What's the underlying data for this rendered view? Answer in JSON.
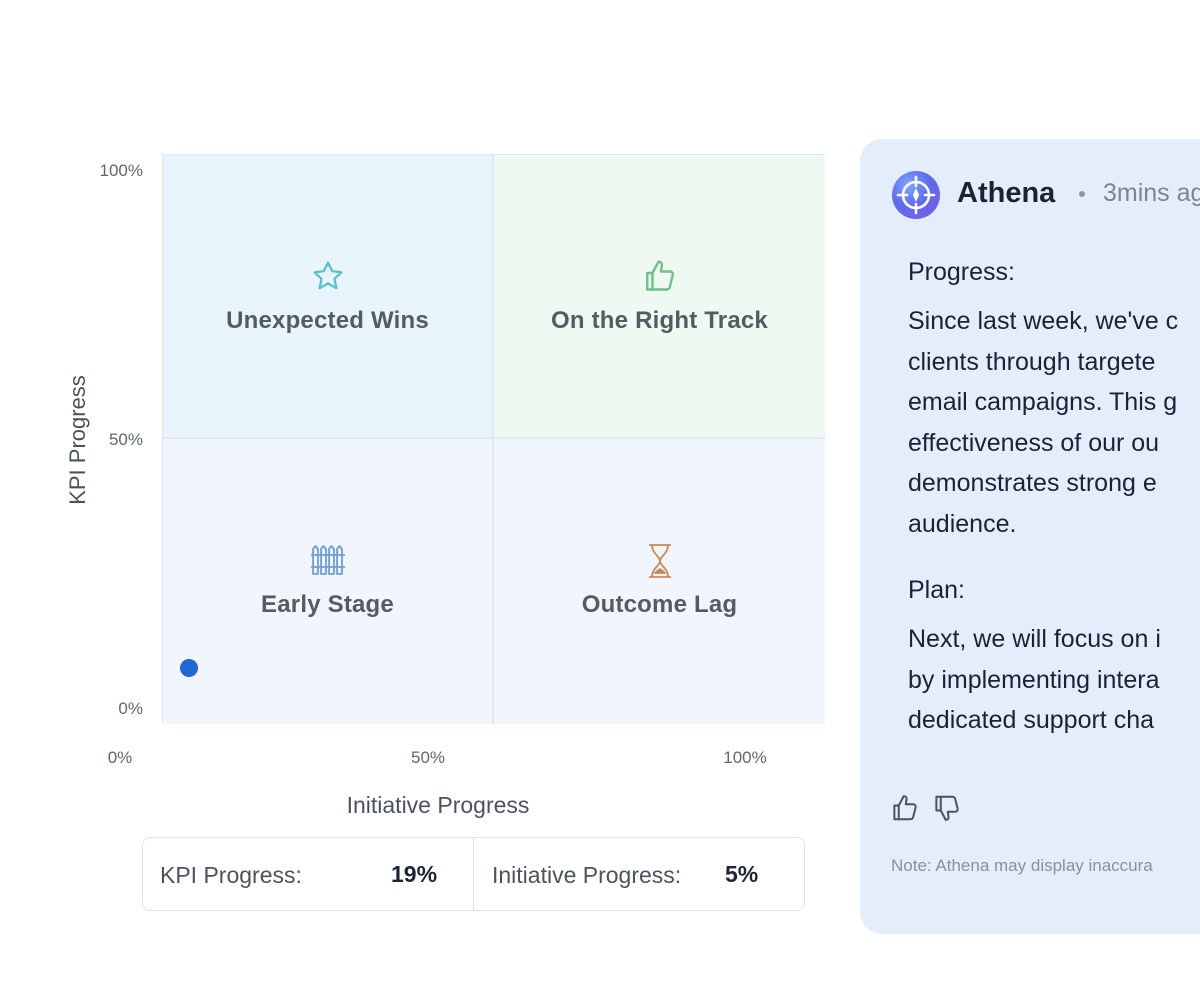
{
  "chart_data": {
    "type": "scatter",
    "xlabel": "Initiative Progress",
    "ylabel": "KPI Progress",
    "xlim": [
      0,
      100
    ],
    "ylim": [
      0,
      100
    ],
    "x_ticks": [
      "0%",
      "50%",
      "100%"
    ],
    "y_ticks": [
      "100%",
      "50%",
      "0%"
    ],
    "quadrants": [
      {
        "label": "Unexpected Wins",
        "icon": "star-icon",
        "color": "#5bbdd0"
      },
      {
        "label": "On the Right Track",
        "icon": "thumbs-up-icon",
        "color": "#6cc08a"
      },
      {
        "label": "Early Stage",
        "icon": "fence-icon",
        "color": "#6f9ee0"
      },
      {
        "label": "Outcome Lag",
        "icon": "hourglass-icon",
        "color": "#c98a55"
      }
    ],
    "points": [
      {
        "x": 5,
        "y": 19,
        "color": "#1f66d6"
      }
    ]
  },
  "summary": {
    "kpi_label": "KPI Progress:",
    "kpi_value": "19%",
    "initiative_label": "Initiative Progress:",
    "initiative_value": "5%"
  },
  "assistant": {
    "name": "Athena",
    "timestamp": "3mins ag",
    "progress_title": "Progress:",
    "progress_body": "Since last week, we've c\nclients through targete\nemail campaigns. This g\neffectiveness of our ou\ndemonstrates strong e\naudience.",
    "plan_title": "Plan:",
    "plan_body": "Next, we will focus on i\nby implementing intera\ndedicated support cha",
    "note": "Note: Athena may display inaccura",
    "colors": {
      "panel_bg": "#e3eefa",
      "text": "#1b2236",
      "muted": "#7b8596"
    }
  }
}
